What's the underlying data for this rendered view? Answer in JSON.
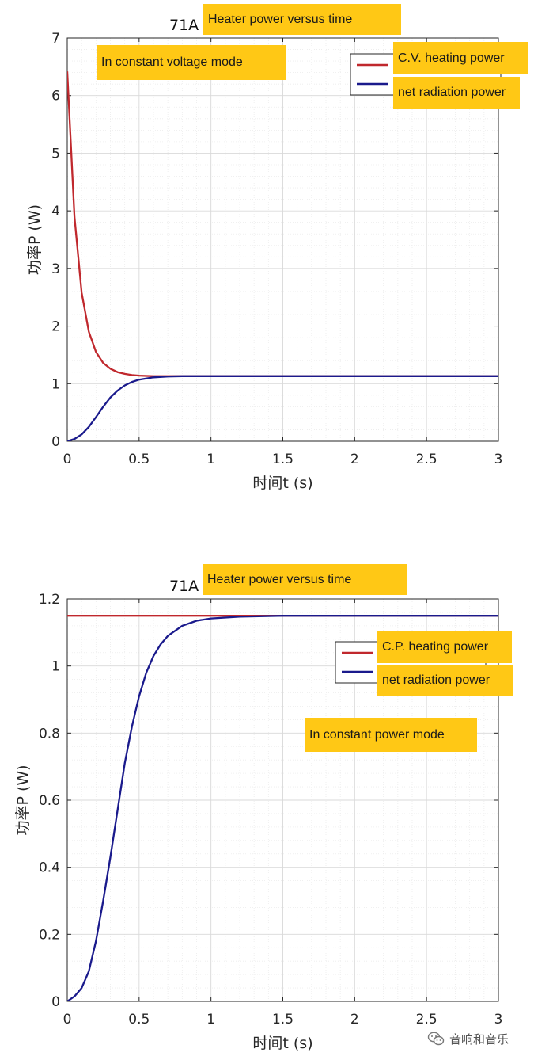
{
  "chart_data": [
    {
      "type": "line",
      "title": "71A",
      "title_overlay": "Heater power versus time",
      "annotation": "In constant voltage mode",
      "xlabel": "时间t (s)",
      "ylabel": "功率P (W)",
      "xlim": [
        0,
        3
      ],
      "ylim": [
        0,
        7
      ],
      "xticks": [
        "0",
        "0.5",
        "1",
        "1.5",
        "2",
        "2.5",
        "3"
      ],
      "yticks": [
        "0",
        "1",
        "2",
        "3",
        "4",
        "5",
        "6",
        "7"
      ],
      "grid": true,
      "legend_position": "top-right",
      "x": [
        0,
        0.05,
        0.1,
        0.15,
        0.2,
        0.25,
        0.3,
        0.35,
        0.4,
        0.45,
        0.5,
        0.6,
        0.7,
        0.8,
        1.0,
        1.5,
        2.0,
        2.5,
        3.0
      ],
      "series": [
        {
          "name": "C.V. heating power",
          "color": "#c0282d",
          "values": [
            6.42,
            3.9,
            2.58,
            1.9,
            1.55,
            1.36,
            1.26,
            1.2,
            1.17,
            1.15,
            1.14,
            1.13,
            1.13,
            1.13,
            1.13,
            1.13,
            1.13,
            1.13,
            1.13
          ]
        },
        {
          "name": "net radiation power",
          "color": "#1a1a8c",
          "values": [
            0,
            0.04,
            0.12,
            0.25,
            0.42,
            0.6,
            0.76,
            0.88,
            0.97,
            1.03,
            1.07,
            1.11,
            1.125,
            1.13,
            1.13,
            1.13,
            1.13,
            1.13,
            1.13
          ]
        }
      ]
    },
    {
      "type": "line",
      "title": "71A",
      "title_overlay": "Heater power versus time",
      "annotation": "In constant power mode",
      "xlabel": "时间t (s)",
      "ylabel": "功率P (W)",
      "xlim": [
        0,
        3
      ],
      "ylim": [
        0,
        1.2
      ],
      "xticks": [
        "0",
        "0.5",
        "1",
        "1.5",
        "2",
        "2.5",
        "3"
      ],
      "yticks": [
        "0",
        "0.2",
        "0.4",
        "0.6",
        "0.8",
        "1",
        "1.2"
      ],
      "grid": true,
      "legend_position": "top-right",
      "x": [
        0,
        0.05,
        0.1,
        0.15,
        0.2,
        0.25,
        0.3,
        0.35,
        0.4,
        0.45,
        0.5,
        0.55,
        0.6,
        0.65,
        0.7,
        0.8,
        0.9,
        1.0,
        1.2,
        1.5,
        2.0,
        2.5,
        3.0
      ],
      "series": [
        {
          "name": "C.P. heating power",
          "color": "#c0282d",
          "values": [
            1.15,
            1.15,
            1.15,
            1.15,
            1.15,
            1.15,
            1.15,
            1.15,
            1.15,
            1.15,
            1.15,
            1.15,
            1.15,
            1.15,
            1.15,
            1.15,
            1.15,
            1.15,
            1.15,
            1.15,
            1.15,
            1.15,
            1.15
          ]
        },
        {
          "name": "net radiation power",
          "color": "#1a1a8c",
          "values": [
            0,
            0.015,
            0.04,
            0.09,
            0.18,
            0.3,
            0.43,
            0.57,
            0.71,
            0.82,
            0.91,
            0.98,
            1.03,
            1.065,
            1.09,
            1.12,
            1.135,
            1.142,
            1.147,
            1.15,
            1.15,
            1.15,
            1.15
          ]
        }
      ]
    }
  ],
  "watermark": "音响和音乐"
}
